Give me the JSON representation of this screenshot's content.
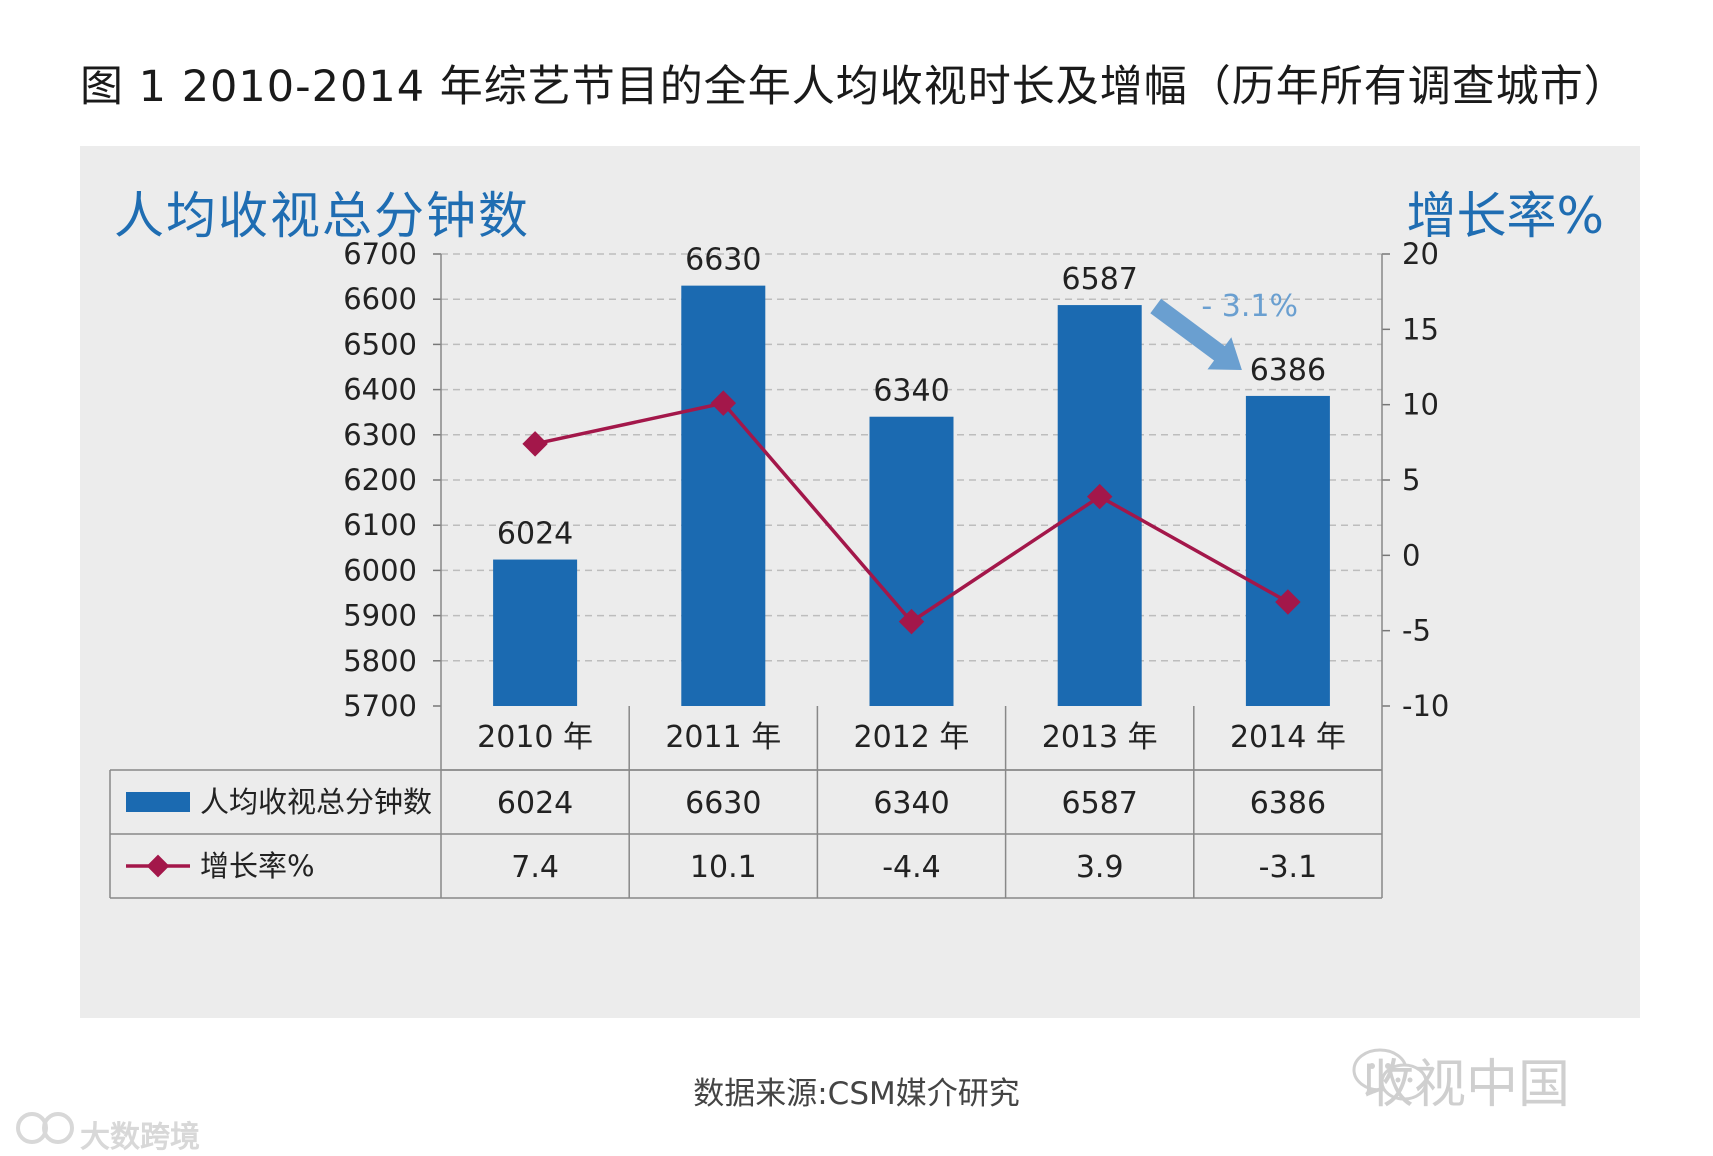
{
  "figure_title": "图 1  2010-2014 年综艺节目的全年人均收视时长及增幅（历年所有调查城市）",
  "source_note": "数据来源:CSM媒介研究",
  "watermark_right": "收视中国",
  "watermark_left": "大数跨境",
  "colors": {
    "bar": "#1b6ab1",
    "line": "#a3174a",
    "accent_title": "#1f6db2",
    "annotation": "#6a9fd0",
    "panel": "#ececec"
  },
  "chart_data": {
    "type": "bar",
    "left_title": "人均收视总分钟数",
    "right_title": "增长率%",
    "categories": [
      "2010 年",
      "2011 年",
      "2012 年",
      "2013 年",
      "2014 年"
    ],
    "ylim": [
      5700,
      6700
    ],
    "yticks": [
      "6700",
      "6600",
      "6500",
      "6400",
      "6300",
      "6200",
      "6100",
      "6000",
      "5900",
      "5800",
      "5700"
    ],
    "y2lim": [
      -10,
      20
    ],
    "y2ticks": [
      "20",
      "15",
      "10",
      "5",
      "0",
      "-5",
      "-10"
    ],
    "series": [
      {
        "name": "人均收视总分钟数",
        "kind": "bar",
        "values": [
          6024,
          6630,
          6340,
          6587,
          6386
        ],
        "labels": [
          "6024",
          "6630",
          "6340",
          "6587",
          "6386"
        ]
      },
      {
        "name": "增长率%",
        "kind": "line",
        "axis": "right",
        "values": [
          7.4,
          10.1,
          -4.4,
          3.9,
          -3.1
        ],
        "labels": [
          "7.4",
          "10.1",
          "-4.4",
          "3.9",
          "-3.1"
        ]
      }
    ],
    "annotation": "- 3.1%",
    "grid": true,
    "legend": "table-below"
  }
}
